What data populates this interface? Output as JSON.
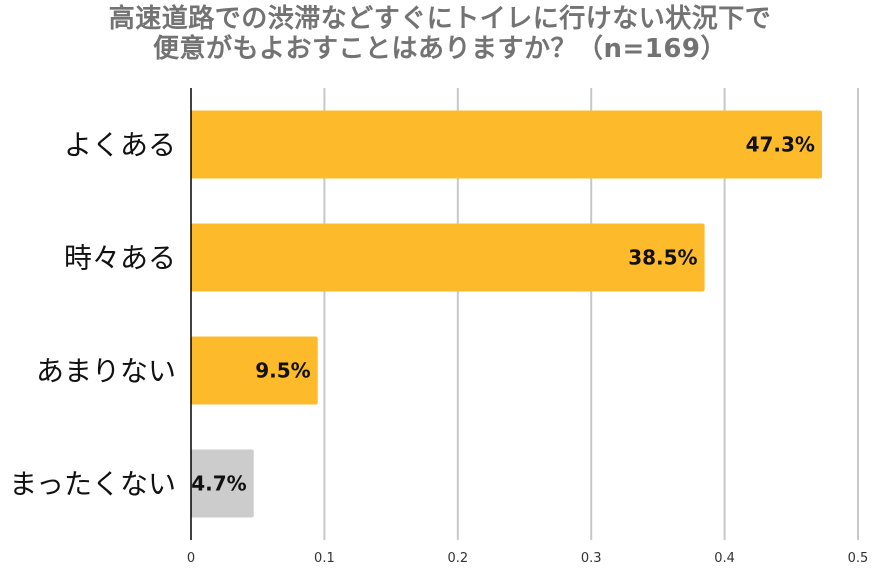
{
  "chart_data": {
    "type": "bar",
    "orientation": "horizontal",
    "title": "高速道路での渋滞などすぐにトイレに行けない状況下で便意がもよおすことはありますか？（n=169）",
    "title_lines": [
      "高速道路での渋滞などすぐにトイレに行けない状況下で",
      "便意がもよおすことはありますか？（n=169）"
    ],
    "categories": [
      "よくある",
      "時々ある",
      "あまりない",
      "まったくない"
    ],
    "values": [
      0.473,
      0.385,
      0.095,
      0.047
    ],
    "data_labels": [
      "47.3%",
      "38.5%",
      "9.5%",
      "4.7%"
    ],
    "bar_colors": [
      "#FDBB2C",
      "#FDBB2C",
      "#FDBB2C",
      "#CCCCCC"
    ],
    "xlim": [
      0,
      0.5
    ],
    "xticks": [
      0,
      0.1,
      0.2,
      0.3,
      0.4,
      0.5
    ],
    "xtick_labels": [
      "0",
      "0.1",
      "0.2",
      "0.3",
      "0.4",
      "0.5"
    ],
    "grid": true,
    "gridline_color": "#C8C8C8",
    "axis_color": "#000000",
    "legend": "none"
  }
}
